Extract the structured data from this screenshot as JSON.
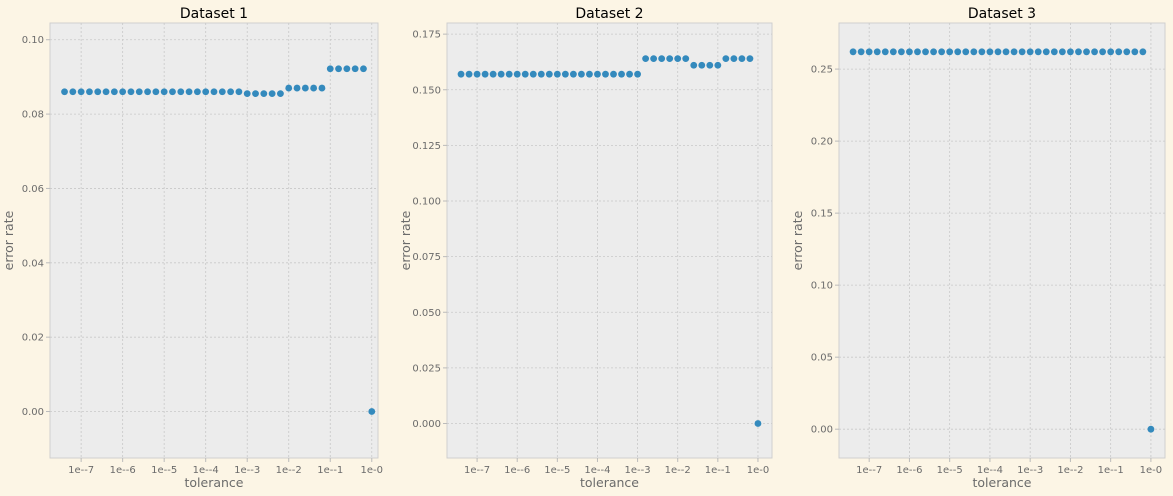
{
  "chart_data": [
    {
      "type": "scatter",
      "title": "Dataset 1",
      "xlabel": "tolerance",
      "ylabel": "error rate",
      "x_scale": "log",
      "xlim_log10": [
        -7.75,
        0.15
      ],
      "ylim": [
        -0.0125,
        0.1045
      ],
      "xticks": [
        -7,
        -6,
        -5,
        -4,
        -3,
        -2,
        -1,
        0
      ],
      "xtick_labels": [
        "1e--7",
        "1e--6",
        "1e--5",
        "1e--4",
        "1e--3",
        "1e--2",
        "1e--1",
        "1e-0"
      ],
      "yticks": [
        0.0,
        0.02,
        0.04,
        0.06,
        0.08,
        0.1
      ],
      "ytick_labels": [
        "0.00",
        "0.02",
        "0.04",
        "0.06",
        "0.08",
        "0.10"
      ],
      "grid": true,
      "marker_color": "#348abd",
      "x_log10": [
        -7.4,
        -7.2,
        -7.0,
        -6.8,
        -6.6,
        -6.4,
        -6.2,
        -6.0,
        -5.8,
        -5.6,
        -5.4,
        -5.2,
        -5.0,
        -4.8,
        -4.6,
        -4.4,
        -4.2,
        -4.0,
        -3.8,
        -3.6,
        -3.4,
        -3.2,
        -3.0,
        -2.8,
        -2.6,
        -2.4,
        -2.2,
        -2.0,
        -1.8,
        -1.6,
        -1.4,
        -1.2,
        -1.0,
        -0.8,
        -0.6,
        -0.4,
        -0.2,
        0.0
      ],
      "y": [
        0.086,
        0.086,
        0.086,
        0.086,
        0.086,
        0.086,
        0.086,
        0.086,
        0.086,
        0.086,
        0.086,
        0.086,
        0.086,
        0.086,
        0.086,
        0.086,
        0.086,
        0.086,
        0.086,
        0.086,
        0.086,
        0.086,
        0.0855,
        0.0855,
        0.0855,
        0.0855,
        0.0855,
        0.087,
        0.087,
        0.087,
        0.087,
        0.087,
        0.0922,
        0.0922,
        0.0922,
        0.0922,
        0.0922,
        0.0
      ]
    },
    {
      "type": "scatter",
      "title": "Dataset 2",
      "xlabel": "tolerance",
      "ylabel": "error rate",
      "x_scale": "log",
      "xlim_log10": [
        -7.75,
        0.35
      ],
      "ylim": [
        -0.0155,
        0.18
      ],
      "xticks": [
        -7,
        -6,
        -5,
        -4,
        -3,
        -2,
        -1,
        0
      ],
      "xtick_labels": [
        "1e--7",
        "1e--6",
        "1e--5",
        "1e--4",
        "1e--3",
        "1e--2",
        "1e--1",
        "1e-0"
      ],
      "yticks": [
        0.0,
        0.025,
        0.05,
        0.075,
        0.1,
        0.125,
        0.15,
        0.175
      ],
      "ytick_labels": [
        "0.000",
        "0.025",
        "0.050",
        "0.075",
        "0.100",
        "0.125",
        "0.150",
        "0.175"
      ],
      "grid": true,
      "marker_color": "#348abd",
      "x_log10": [
        -7.4,
        -7.2,
        -7.0,
        -6.8,
        -6.6,
        -6.4,
        -6.2,
        -6.0,
        -5.8,
        -5.6,
        -5.4,
        -5.2,
        -5.0,
        -4.8,
        -4.6,
        -4.4,
        -4.2,
        -4.0,
        -3.8,
        -3.6,
        -3.4,
        -3.2,
        -3.0,
        -2.8,
        -2.6,
        -2.4,
        -2.2,
        -2.0,
        -1.8,
        -1.6,
        -1.4,
        -1.2,
        -1.0,
        -0.8,
        -0.6,
        -0.4,
        -0.2,
        0.0
      ],
      "y": [
        0.157,
        0.157,
        0.157,
        0.157,
        0.157,
        0.157,
        0.157,
        0.157,
        0.157,
        0.157,
        0.157,
        0.157,
        0.157,
        0.157,
        0.157,
        0.157,
        0.157,
        0.157,
        0.157,
        0.157,
        0.157,
        0.157,
        0.157,
        0.164,
        0.164,
        0.164,
        0.164,
        0.164,
        0.164,
        0.161,
        0.161,
        0.161,
        0.161,
        0.164,
        0.164,
        0.164,
        0.164,
        0.0
      ]
    },
    {
      "type": "scatter",
      "title": "Dataset 3",
      "xlabel": "tolerance",
      "ylabel": "error rate",
      "x_scale": "log",
      "xlim_log10": [
        -7.75,
        0.35
      ],
      "ylim": [
        -0.02,
        0.282
      ],
      "xticks": [
        -7,
        -6,
        -5,
        -4,
        -3,
        -2,
        -1,
        0
      ],
      "xtick_labels": [
        "1e--7",
        "1e--6",
        "1e--5",
        "1e--4",
        "1e--3",
        "1e--2",
        "1e--1",
        "1e-0"
      ],
      "yticks": [
        0.0,
        0.05,
        0.1,
        0.15,
        0.2,
        0.25
      ],
      "ytick_labels": [
        "0.00",
        "0.05",
        "0.10",
        "0.15",
        "0.20",
        "0.25"
      ],
      "grid": true,
      "marker_color": "#348abd",
      "x_log10": [
        -7.4,
        -7.2,
        -7.0,
        -6.8,
        -6.6,
        -6.4,
        -6.2,
        -6.0,
        -5.8,
        -5.6,
        -5.4,
        -5.2,
        -5.0,
        -4.8,
        -4.6,
        -4.4,
        -4.2,
        -4.0,
        -3.8,
        -3.6,
        -3.4,
        -3.2,
        -3.0,
        -2.8,
        -2.6,
        -2.4,
        -2.2,
        -2.0,
        -1.8,
        -1.6,
        -1.4,
        -1.2,
        -1.0,
        -0.8,
        -0.6,
        -0.4,
        -0.2,
        0.0
      ],
      "y": [
        0.262,
        0.262,
        0.262,
        0.262,
        0.262,
        0.262,
        0.262,
        0.262,
        0.262,
        0.262,
        0.262,
        0.262,
        0.262,
        0.262,
        0.262,
        0.262,
        0.262,
        0.262,
        0.262,
        0.262,
        0.262,
        0.262,
        0.262,
        0.262,
        0.262,
        0.262,
        0.262,
        0.262,
        0.262,
        0.262,
        0.262,
        0.262,
        0.262,
        0.262,
        0.262,
        0.262,
        0.262,
        0.0
      ]
    }
  ]
}
